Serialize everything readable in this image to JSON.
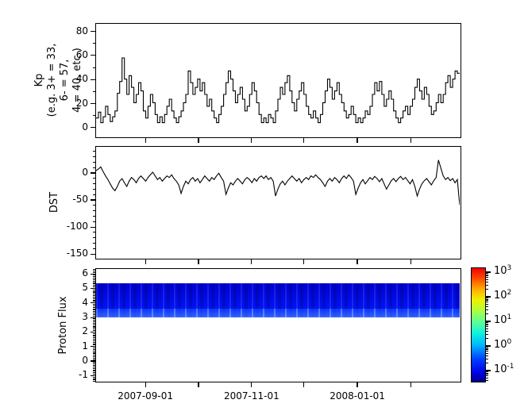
{
  "figure": {
    "background": "#ffffff",
    "line_color": "#000000",
    "kp_ylabel": "Kp\n(e.g. 3+ = 33,\n6- = 57,\n4 = 40, etc.)",
    "dst_ylabel": "DST",
    "flux_ylabel": "Proton Flux"
  },
  "x_axis": {
    "ticks": [
      {
        "label": "2007-09-01",
        "pos": 0.137
      },
      {
        "label": "",
        "pos": 0.282
      },
      {
        "label": "2007-11-01",
        "pos": 0.427
      },
      {
        "label": "",
        "pos": 0.57
      },
      {
        "label": "2008-01-01",
        "pos": 0.716
      },
      {
        "label": "",
        "pos": 0.863
      }
    ]
  },
  "chart_data": [
    {
      "id": "kp",
      "type": "line",
      "style": "step",
      "ylabel": "Kp (e.g. 3+ = 33, 6- = 57, 4 = 40, etc.)",
      "ylim": [
        -8.7,
        87
      ],
      "yticks": [
        80,
        60,
        40,
        20,
        0
      ],
      "minor_step": 10,
      "grid": false,
      "values": [
        7,
        12,
        3,
        8,
        17,
        10,
        4,
        8,
        13,
        28,
        38,
        58,
        40,
        27,
        43,
        33,
        20,
        27,
        37,
        30,
        13,
        7,
        17,
        27,
        20,
        10,
        3,
        8,
        3,
        10,
        17,
        23,
        13,
        7,
        3,
        8,
        13,
        20,
        27,
        47,
        37,
        27,
        33,
        40,
        30,
        37,
        27,
        17,
        23,
        13,
        7,
        3,
        10,
        17,
        27,
        37,
        47,
        40,
        30,
        20,
        27,
        33,
        23,
        13,
        17,
        27,
        37,
        30,
        20,
        10,
        3,
        7,
        3,
        10,
        7,
        3,
        13,
        23,
        33,
        27,
        37,
        43,
        30,
        20,
        13,
        23,
        30,
        37,
        27,
        17,
        10,
        7,
        13,
        7,
        3,
        10,
        20,
        30,
        40,
        33,
        23,
        30,
        37,
        27,
        20,
        13,
        7,
        10,
        17,
        10,
        3,
        7,
        3,
        7,
        13,
        10,
        17,
        27,
        37,
        30,
        38,
        27,
        17,
        23,
        30,
        23,
        13,
        7,
        3,
        7,
        13,
        17,
        10,
        17,
        23,
        33,
        40,
        30,
        23,
        33,
        27,
        17,
        10,
        13,
        20,
        27,
        20,
        27,
        37,
        43,
        33,
        40,
        47,
        45
      ]
    },
    {
      "id": "dst",
      "type": "line",
      "style": "line",
      "ylabel": "DST",
      "ylim": [
        -160,
        50
      ],
      "yticks": [
        0,
        -50,
        -100,
        -150
      ],
      "minor_step": 10,
      "grid": false,
      "values": [
        5,
        8,
        12,
        3,
        -5,
        -12,
        -20,
        -28,
        -33,
        -25,
        -15,
        -10,
        -18,
        -25,
        -15,
        -8,
        -12,
        -18,
        -10,
        -5,
        -10,
        -15,
        -8,
        -3,
        2,
        -5,
        -12,
        -8,
        -15,
        -10,
        -5,
        -8,
        -3,
        -10,
        -15,
        -22,
        -38,
        -25,
        -15,
        -20,
        -12,
        -8,
        -15,
        -10,
        -18,
        -12,
        -5,
        -10,
        -15,
        -8,
        -12,
        -5,
        0,
        -8,
        -15,
        -40,
        -28,
        -18,
        -22,
        -15,
        -10,
        -15,
        -20,
        -12,
        -8,
        -12,
        -18,
        -10,
        -15,
        -8,
        -5,
        -10,
        -5,
        -12,
        -8,
        -15,
        -43,
        -30,
        -20,
        -15,
        -22,
        -15,
        -10,
        -5,
        -10,
        -15,
        -10,
        -18,
        -12,
        -8,
        -12,
        -5,
        -8,
        -3,
        -8,
        -12,
        -18,
        -25,
        -15,
        -10,
        -15,
        -8,
        -12,
        -18,
        -10,
        -5,
        -10,
        -3,
        -8,
        -15,
        -40,
        -28,
        -18,
        -12,
        -20,
        -14,
        -8,
        -12,
        -6,
        -10,
        -16,
        -10,
        -20,
        -30,
        -22,
        -14,
        -10,
        -16,
        -10,
        -6,
        -12,
        -8,
        -14,
        -20,
        -12,
        -25,
        -43,
        -30,
        -20,
        -14,
        -10,
        -16,
        -22,
        -14,
        -8,
        25,
        10,
        -5,
        -12,
        -8,
        -14,
        -10,
        -18,
        -12,
        -60
      ]
    },
    {
      "id": "flux",
      "type": "heatmap",
      "ylabel": "Proton Flux",
      "ylim": [
        -1.47,
        6.39
      ],
      "yticks": [
        6,
        5,
        4,
        3,
        2,
        1,
        0,
        -1
      ],
      "minor_step": 0.1,
      "band": {
        "y_top": 5.3,
        "y_bottom": 2.97,
        "rows": [
          {
            "y_top": 5.3,
            "y_bottom": 3.6,
            "value_approx": 0.12,
            "color_top": "#0000d2",
            "color_bottom": "#0013f2"
          },
          {
            "y_top": 3.6,
            "y_bottom": 2.97,
            "value_approx": 0.4,
            "color_top": "#0a34ff",
            "color_bottom": "#3566ff"
          }
        ]
      },
      "colorbar": {
        "scale": "log",
        "colormap": "jet",
        "range_approx": [
          0.03,
          1500
        ],
        "tick_exponents": [
          3,
          2,
          1,
          0,
          -1
        ],
        "tick_base": "10"
      }
    }
  ]
}
